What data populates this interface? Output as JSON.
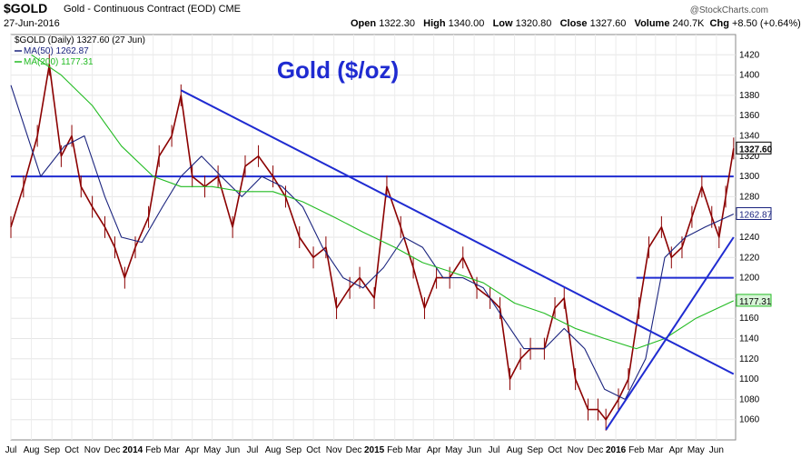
{
  "header": {
    "symbol": "$GOLD",
    "description": "Gold - Continuous Contract (EOD) CME",
    "date": "27-Jun-2016",
    "open_label": "Open",
    "open": "1322.30",
    "high_label": "High",
    "high": "1340.00",
    "low_label": "Low",
    "low": "1320.80",
    "close_label": "Close",
    "close": "1327.60",
    "volume_label": "Volume",
    "volume": "240.7K",
    "chg_label": "Chg",
    "chg": "+8.50 (+0.64%)",
    "brand": "@StockCharts.com"
  },
  "legend": {
    "price": "$GOLD (Daily) 1327.60 (27 Jun)",
    "ma50": "MA(50) 1262.87",
    "ma200": "MA(200) 1177.31"
  },
  "chart_data": {
    "type": "line",
    "title": "Gold ($/oz)",
    "x_ticks": [
      "Jul",
      "Aug",
      "Sep",
      "Oct",
      "Nov",
      "Dec",
      "2014",
      "Feb",
      "Mar",
      "Apr",
      "May",
      "Jun",
      "Jul",
      "Aug",
      "Sep",
      "Oct",
      "Nov",
      "Dec",
      "2015",
      "Feb",
      "Mar",
      "Apr",
      "May",
      "Jun",
      "Jul",
      "Aug",
      "Sep",
      "Oct",
      "Nov",
      "Dec",
      "2016",
      "Feb",
      "Mar",
      "Apr",
      "May",
      "Jun"
    ],
    "ylim": [
      1040,
      1440
    ],
    "y_ticks": [
      1060,
      1080,
      1100,
      1120,
      1140,
      1160,
      1180,
      1200,
      1220,
      1240,
      1260,
      1280,
      1300,
      1320,
      1340,
      1360,
      1380,
      1400,
      1420
    ],
    "last_value_labels": {
      "close": "1327.60",
      "ma50": "1262.87",
      "ma200": "1177.31"
    },
    "series": [
      {
        "name": "$GOLD (Daily)",
        "color": "#8b0000",
        "style": "hlc-bars",
        "x": [
          "2013-07-01",
          "2013-07-20",
          "2013-08-10",
          "2013-08-28",
          "2013-09-15",
          "2013-10-01",
          "2013-10-15",
          "2013-11-01",
          "2013-11-20",
          "2013-12-05",
          "2013-12-20",
          "2014-01-05",
          "2014-01-25",
          "2014-02-10",
          "2014-03-01",
          "2014-03-15",
          "2014-04-01",
          "2014-04-20",
          "2014-05-10",
          "2014-06-01",
          "2014-06-20",
          "2014-07-10",
          "2014-08-01",
          "2014-08-20",
          "2014-09-10",
          "2014-10-01",
          "2014-10-20",
          "2014-11-05",
          "2014-11-25",
          "2014-12-10",
          "2015-01-01",
          "2015-01-20",
          "2015-02-10",
          "2015-03-01",
          "2015-03-18",
          "2015-04-05",
          "2015-04-25",
          "2015-05-15",
          "2015-06-05",
          "2015-06-25",
          "2015-07-10",
          "2015-07-25",
          "2015-08-10",
          "2015-08-25",
          "2015-09-15",
          "2015-10-01",
          "2015-10-15",
          "2015-11-01",
          "2015-11-20",
          "2015-12-05",
          "2015-12-17",
          "2016-01-05",
          "2016-01-20",
          "2016-02-05",
          "2016-02-20",
          "2016-03-10",
          "2016-03-25",
          "2016-04-10",
          "2016-04-25",
          "2016-05-10",
          "2016-05-25",
          "2016-06-05",
          "2016-06-15",
          "2016-06-27"
        ],
        "values": [
          1250,
          1290,
          1340,
          1410,
          1320,
          1340,
          1290,
          1270,
          1250,
          1230,
          1200,
          1230,
          1260,
          1320,
          1340,
          1380,
          1300,
          1290,
          1300,
          1250,
          1310,
          1320,
          1300,
          1280,
          1240,
          1220,
          1230,
          1170,
          1190,
          1200,
          1180,
          1290,
          1250,
          1210,
          1170,
          1200,
          1200,
          1220,
          1190,
          1180,
          1170,
          1100,
          1120,
          1130,
          1130,
          1170,
          1180,
          1100,
          1070,
          1070,
          1060,
          1080,
          1100,
          1170,
          1230,
          1250,
          1220,
          1230,
          1260,
          1290,
          1260,
          1240,
          1280,
          1327.6
        ]
      },
      {
        "name": "MA(50)",
        "color": "#1a237e",
        "x": [
          "2013-07-01",
          "2013-08-15",
          "2013-09-20",
          "2013-10-20",
          "2013-11-20",
          "2013-12-15",
          "2014-01-15",
          "2014-02-15",
          "2014-03-15",
          "2014-04-15",
          "2014-05-15",
          "2014-06-15",
          "2014-07-15",
          "2014-08-15",
          "2014-09-15",
          "2014-10-15",
          "2014-11-15",
          "2014-12-15",
          "2015-01-15",
          "2015-02-15",
          "2015-03-15",
          "2015-04-15",
          "2015-05-15",
          "2015-06-15",
          "2015-07-15",
          "2015-08-15",
          "2015-09-15",
          "2015-10-15",
          "2015-11-15",
          "2015-12-15",
          "2016-01-15",
          "2016-02-15",
          "2016-03-15",
          "2016-04-15",
          "2016-05-15",
          "2016-06-27"
        ],
        "values": [
          1390,
          1300,
          1330,
          1340,
          1280,
          1240,
          1235,
          1270,
          1300,
          1320,
          1300,
          1280,
          1300,
          1290,
          1270,
          1230,
          1200,
          1190,
          1210,
          1240,
          1230,
          1200,
          1200,
          1190,
          1160,
          1130,
          1130,
          1150,
          1130,
          1090,
          1080,
          1120,
          1220,
          1240,
          1250,
          1262.87
        ]
      },
      {
        "name": "MA(200)",
        "color": "#22bb22",
        "x": [
          "2013-08-01",
          "2013-09-15",
          "2013-11-01",
          "2013-12-15",
          "2014-02-01",
          "2014-03-15",
          "2014-05-01",
          "2014-06-15",
          "2014-08-01",
          "2014-09-15",
          "2014-11-01",
          "2014-12-15",
          "2015-02-01",
          "2015-03-15",
          "2015-05-01",
          "2015-06-15",
          "2015-08-01",
          "2015-09-15",
          "2015-11-01",
          "2015-12-15",
          "2016-02-01",
          "2016-03-15",
          "2016-05-01",
          "2016-06-27"
        ],
        "values": [
          1420,
          1400,
          1370,
          1330,
          1300,
          1290,
          1290,
          1285,
          1285,
          1275,
          1260,
          1245,
          1230,
          1215,
          1205,
          1195,
          1175,
          1165,
          1150,
          1140,
          1130,
          1140,
          1160,
          1177.31
        ]
      },
      {
        "name": "Trendline 1",
        "color": "#1f2bd1",
        "x": [
          "2014-03-15",
          "2016-06-27"
        ],
        "values": [
          1385,
          1105
        ]
      },
      {
        "name": "Trendline 2",
        "color": "#1f2bd1",
        "x": [
          "2015-12-17",
          "2016-06-27"
        ],
        "values": [
          1050,
          1240
        ]
      }
    ],
    "horizontal_lines": [
      {
        "color": "#1f2bd1",
        "y": 1300,
        "x": [
          "2013-07-01",
          "2016-06-27"
        ]
      },
      {
        "color": "#1f2bd1",
        "y": 1200,
        "x": [
          "2016-02-01",
          "2016-06-27"
        ]
      }
    ]
  }
}
